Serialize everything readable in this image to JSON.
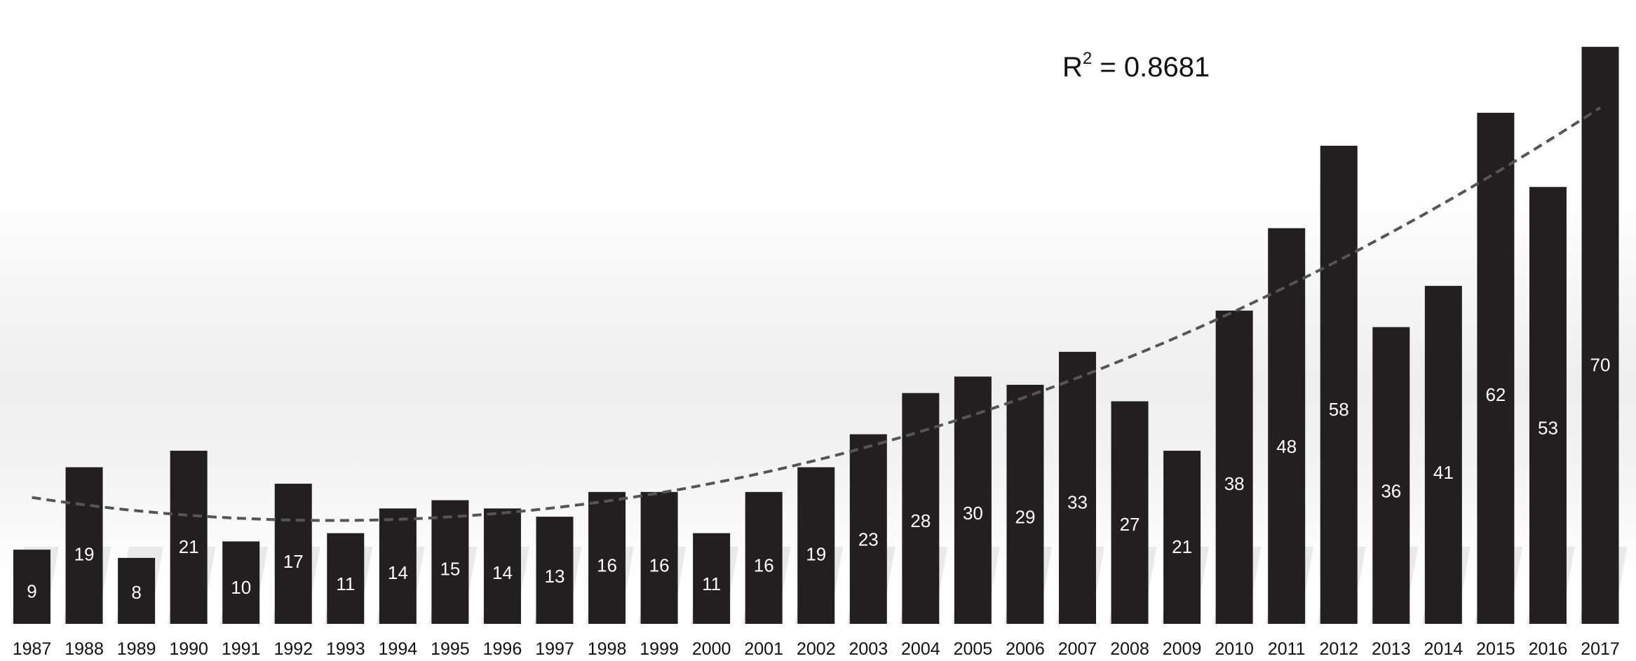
{
  "chart_data": {
    "type": "bar",
    "title": "",
    "xlabel": "",
    "ylabel": "",
    "categories": [
      "1987",
      "1988",
      "1989",
      "1990",
      "1991",
      "1992",
      "1993",
      "1994",
      "1995",
      "1996",
      "1997",
      "1998",
      "1999",
      "2000",
      "2001",
      "2002",
      "2003",
      "2004",
      "2005",
      "2006",
      "2007",
      "2008",
      "2009",
      "2010",
      "2011",
      "2012",
      "2013",
      "2014",
      "2015",
      "2016",
      "2017"
    ],
    "values": [
      9,
      19,
      8,
      21,
      10,
      17,
      11,
      14,
      15,
      14,
      13,
      16,
      16,
      11,
      16,
      19,
      23,
      28,
      30,
      29,
      33,
      27,
      21,
      38,
      48,
      58,
      36,
      41,
      62,
      53,
      70
    ],
    "ylim": [
      0,
      75
    ],
    "grid": false,
    "data_labels": true,
    "bar_color": "#231f20",
    "label_color": "#ffffff",
    "trendline": {
      "type": "polynomial",
      "style": "dashed",
      "color": "#555555",
      "r_squared_prefix": "R",
      "r_squared_exponent": "2",
      "r_squared_value": " = 0.8681"
    }
  }
}
